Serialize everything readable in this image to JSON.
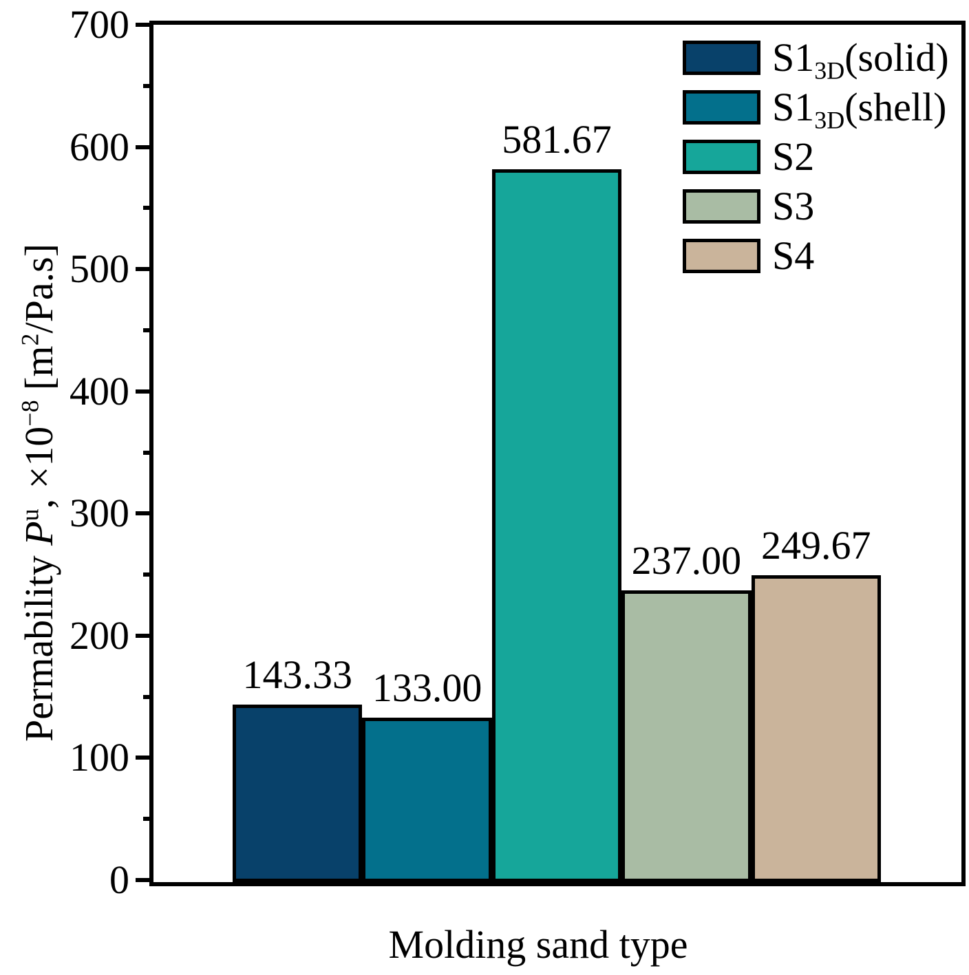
{
  "figure": {
    "xlabel": "Molding sand type",
    "ylabel_parts": {
      "prefix": "Permability ",
      "symbol": "P",
      "symbol_sup": "u",
      "mid": ", ×10",
      "exponent": "−8",
      "unit_open": " [m",
      "unit_exp": "2",
      "unit_close": "/Pa.s]"
    }
  },
  "chart_data": {
    "type": "bar",
    "title": "",
    "xlabel": "Molding sand type",
    "ylabel": "Permability Pᵘ, ×10⁻⁸ [m²/Pa.s]",
    "categories": [
      "S1_3D (solid)",
      "S1_3D (shell)",
      "S2",
      "S3",
      "S4"
    ],
    "values": [
      143.33,
      133.0,
      581.67,
      237.0,
      249.67
    ],
    "value_labels": [
      "143.33",
      "133.00",
      "581.67",
      "237.00",
      "249.67"
    ],
    "bar_colors": [
      "#08416a",
      "#03708c",
      "#16a69a",
      "#a9bca4",
      "#cab49b"
    ],
    "bar_edge_color": "#000000",
    "ylim": [
      0,
      700
    ],
    "ytick_values": [
      0,
      100,
      200,
      300,
      400,
      500,
      600,
      700
    ],
    "ytick_labels": [
      "0",
      "100",
      "200",
      "300",
      "400",
      "500",
      "600",
      "700"
    ],
    "minor_tick_step": 50,
    "grid": false,
    "legend_position": "inside top-right",
    "legend": [
      {
        "pre": "S1",
        "sub": "3D",
        "post": "(solid)",
        "color": "#08416a"
      },
      {
        "pre": "S1",
        "sub": "3D",
        "post": "(shell)",
        "color": "#03708c"
      },
      {
        "pre": "S2",
        "sub": "",
        "post": "",
        "color": "#16a69a"
      },
      {
        "pre": "S3",
        "sub": "",
        "post": "",
        "color": "#a9bca4"
      },
      {
        "pre": "S4",
        "sub": "",
        "post": "",
        "color": "#cab49b"
      }
    ]
  }
}
